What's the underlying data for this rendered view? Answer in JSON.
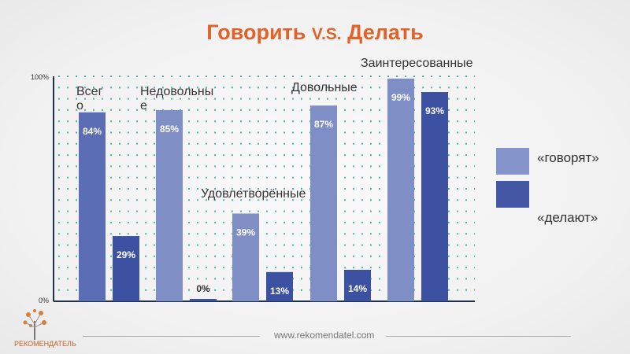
{
  "title": {
    "main": "Говорить ",
    "vs": "V.S.",
    "end": " Делать"
  },
  "chart_data": {
    "type": "bar",
    "title": "Говорить V.S. Делать",
    "categories": [
      "Всего",
      "Недовольные",
      "Удовлетворённые",
      "Довольные",
      "Заинтересованные"
    ],
    "series": [
      {
        "name": "«говорят»",
        "values": [
          84,
          85,
          39,
          87,
          99
        ],
        "color": "#7f8fc6",
        "labels": [
          "84%",
          "85%",
          "39%",
          "87%",
          "99%"
        ]
      },
      {
        "name": "«делают»",
        "values": [
          29,
          0,
          13,
          14,
          93
        ],
        "color": "#3d51a2",
        "labels": [
          "29%",
          "0%",
          "13%",
          "14%",
          "93%"
        ]
      }
    ],
    "first_bar_color": "#5b6db4",
    "yticks": [
      "0%",
      "100%"
    ],
    "ylim": [
      0,
      100
    ],
    "legend": "right",
    "grid": "dotted"
  },
  "footer": {
    "url": "www.rekomendatel.com",
    "logo_text": "РЕКОМЕНДАТЕЛЬ"
  }
}
